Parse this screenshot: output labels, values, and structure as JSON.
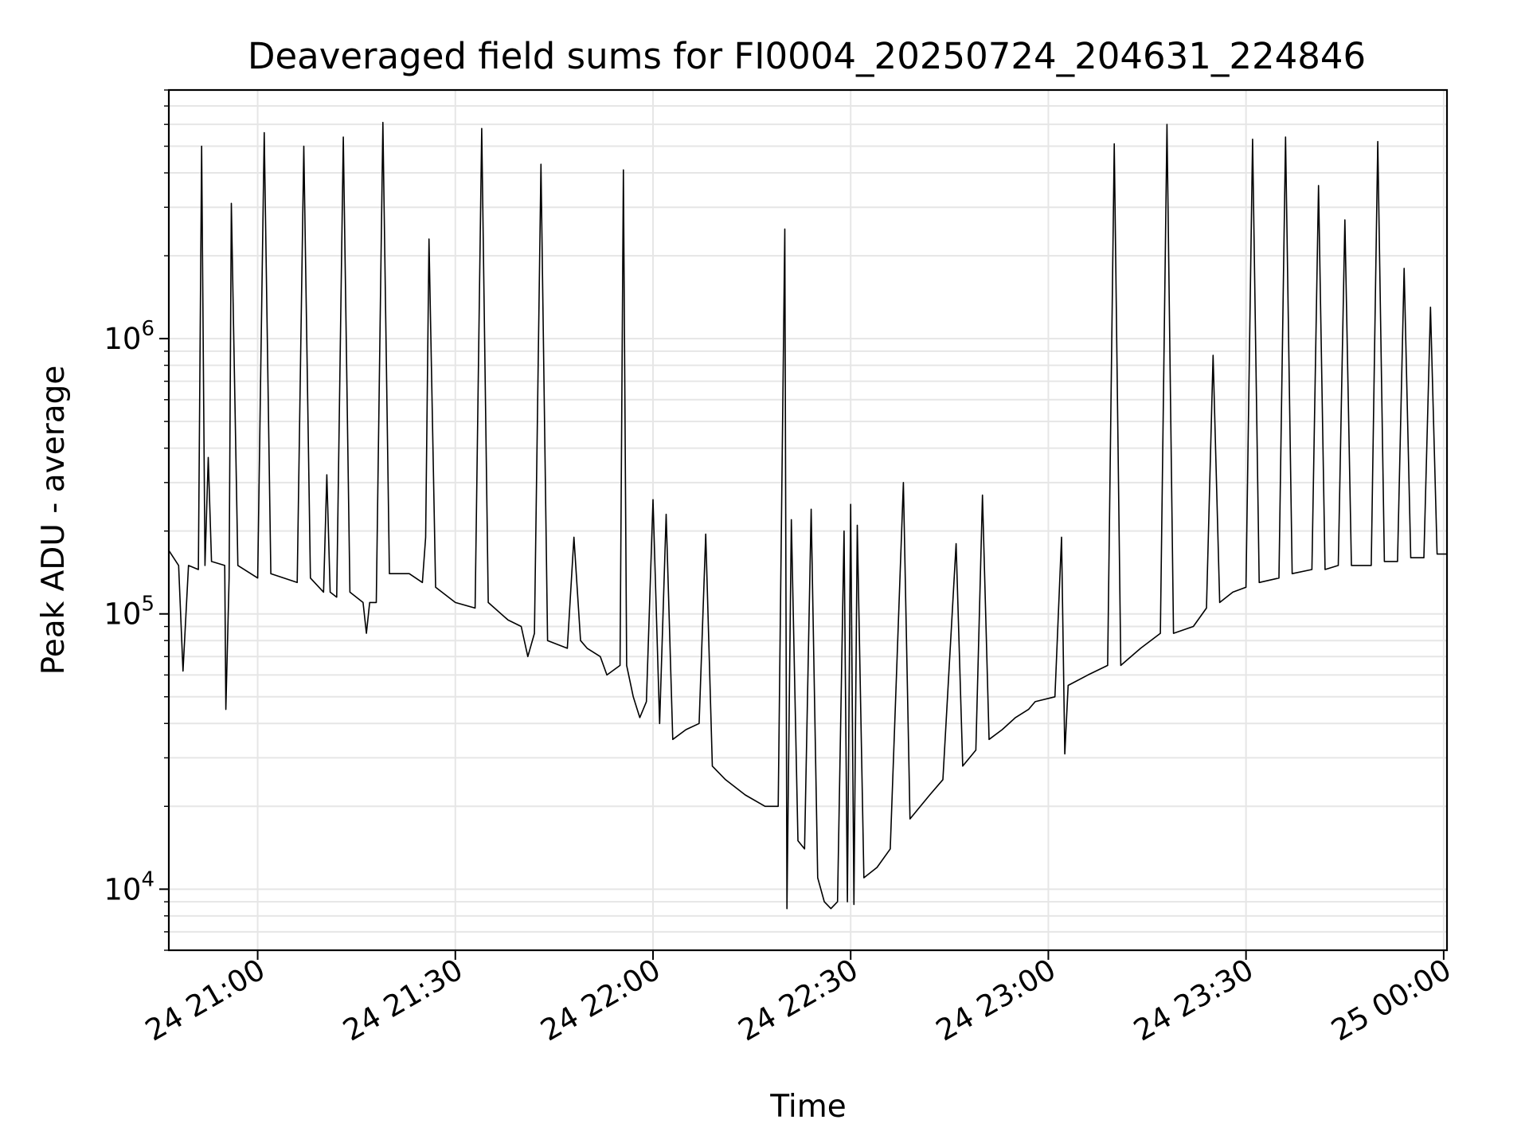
{
  "chart_data": {
    "type": "line",
    "title": "Deaveraged field sums for FI0004_20250724_204631_224846",
    "xlabel": "Time",
    "ylabel": "Peak ADU - average",
    "x_axis": {
      "scale": "time",
      "range": [
        "2025-07-24 20:46:31",
        "2025-07-25 00:00:30"
      ]
    },
    "y_axis": {
      "scale": "log",
      "range": [
        6000,
        8000000
      ]
    },
    "x_ticks": [
      {
        "value": "2025-07-24 21:00",
        "label": "24 21:00"
      },
      {
        "value": "2025-07-24 21:30",
        "label": "24 21:30"
      },
      {
        "value": "2025-07-24 22:00",
        "label": "24 22:00"
      },
      {
        "value": "2025-07-24 22:30",
        "label": "24 22:30"
      },
      {
        "value": "2025-07-24 23:00",
        "label": "24 23:00"
      },
      {
        "value": "2025-07-24 23:30",
        "label": "24 23:30"
      },
      {
        "value": "2025-07-25 00:00",
        "label": "25 00:00"
      }
    ],
    "y_ticks": [
      {
        "value": 10000,
        "base": "10",
        "exponent": "4"
      },
      {
        "value": 100000,
        "base": "10",
        "exponent": "5"
      },
      {
        "value": 1000000,
        "base": "10",
        "exponent": "6"
      }
    ],
    "grid": true,
    "line_color": "#000000",
    "grid_color": "#e6e6e6",
    "series": [
      {
        "points": [
          [
            "2025-07-24 20:46:31",
            170000
          ],
          [
            "2025-07-24 20:48",
            150000
          ],
          [
            "2025-07-24 20:48:40",
            62000
          ],
          [
            "2025-07-24 20:49:30",
            150000
          ],
          [
            "2025-07-24 20:51",
            145000
          ],
          [
            "2025-07-24 20:51:30",
            5000000
          ],
          [
            "2025-07-24 20:52",
            150000
          ],
          [
            "2025-07-24 20:52:30",
            370000
          ],
          [
            "2025-07-24 20:53",
            155000
          ],
          [
            "2025-07-24 20:55",
            150000
          ],
          [
            "2025-07-24 20:55:10",
            45000
          ],
          [
            "2025-07-24 20:55:40",
            135000
          ],
          [
            "2025-07-24 20:56",
            3100000
          ],
          [
            "2025-07-24 20:57",
            150000
          ],
          [
            "2025-07-24 21:00",
            135000
          ],
          [
            "2025-07-24 21:01",
            5600000
          ],
          [
            "2025-07-24 21:02",
            140000
          ],
          [
            "2025-07-24 21:06",
            130000
          ],
          [
            "2025-07-24 21:07",
            5000000
          ],
          [
            "2025-07-24 21:08",
            135000
          ],
          [
            "2025-07-24 21:10",
            120000
          ],
          [
            "2025-07-24 21:10:30",
            320000
          ],
          [
            "2025-07-24 21:11",
            120000
          ],
          [
            "2025-07-24 21:12",
            115000
          ],
          [
            "2025-07-24 21:13",
            5400000
          ],
          [
            "2025-07-24 21:14",
            120000
          ],
          [
            "2025-07-24 21:16",
            110000
          ],
          [
            "2025-07-24 21:16:30",
            85000
          ],
          [
            "2025-07-24 21:17",
            110000
          ],
          [
            "2025-07-24 21:18",
            110000
          ],
          [
            "2025-07-24 21:19",
            6100000
          ],
          [
            "2025-07-24 21:20",
            140000
          ],
          [
            "2025-07-24 21:23",
            140000
          ],
          [
            "2025-07-24 21:25",
            130000
          ],
          [
            "2025-07-24 21:25:30",
            190000
          ],
          [
            "2025-07-24 21:26",
            2300000
          ],
          [
            "2025-07-24 21:27",
            125000
          ],
          [
            "2025-07-24 21:30",
            110000
          ],
          [
            "2025-07-24 21:33",
            105000
          ],
          [
            "2025-07-24 21:34",
            5800000
          ],
          [
            "2025-07-24 21:35",
            110000
          ],
          [
            "2025-07-24 21:38",
            95000
          ],
          [
            "2025-07-24 21:40",
            90000
          ],
          [
            "2025-07-24 21:41",
            70000
          ],
          [
            "2025-07-24 21:42",
            85000
          ],
          [
            "2025-07-24 21:43",
            4300000
          ],
          [
            "2025-07-24 21:44",
            80000
          ],
          [
            "2025-07-24 21:47",
            75000
          ],
          [
            "2025-07-24 21:48",
            190000
          ],
          [
            "2025-07-24 21:49",
            80000
          ],
          [
            "2025-07-24 21:50",
            75000
          ],
          [
            "2025-07-24 21:52",
            70000
          ],
          [
            "2025-07-24 21:53",
            60000
          ],
          [
            "2025-07-24 21:55",
            65000
          ],
          [
            "2025-07-24 21:55:30",
            4100000
          ],
          [
            "2025-07-24 21:56",
            65000
          ],
          [
            "2025-07-24 21:57",
            50000
          ],
          [
            "2025-07-24 21:58",
            42000
          ],
          [
            "2025-07-24 21:59",
            48000
          ],
          [
            "2025-07-24 22:00",
            260000
          ],
          [
            "2025-07-24 22:01",
            40000
          ],
          [
            "2025-07-24 22:02",
            230000
          ],
          [
            "2025-07-24 22:03",
            35000
          ],
          [
            "2025-07-24 22:05",
            38000
          ],
          [
            "2025-07-24 22:07",
            40000
          ],
          [
            "2025-07-24 22:08",
            195000
          ],
          [
            "2025-07-24 22:09",
            28000
          ],
          [
            "2025-07-24 22:11",
            25000
          ],
          [
            "2025-07-24 22:14",
            22000
          ],
          [
            "2025-07-24 22:17",
            20000
          ],
          [
            "2025-07-24 22:19",
            20000
          ],
          [
            "2025-07-24 22:20",
            2500000
          ],
          [
            "2025-07-24 22:20:20",
            8500
          ],
          [
            "2025-07-24 22:21",
            220000
          ],
          [
            "2025-07-24 22:22",
            15000
          ],
          [
            "2025-07-24 22:23",
            14000
          ],
          [
            "2025-07-24 22:24",
            240000
          ],
          [
            "2025-07-24 22:25",
            11000
          ],
          [
            "2025-07-24 22:26",
            9000
          ],
          [
            "2025-07-24 22:27",
            8500
          ],
          [
            "2025-07-24 22:28",
            9000
          ],
          [
            "2025-07-24 22:29",
            200000
          ],
          [
            "2025-07-24 22:29:30",
            9000
          ],
          [
            "2025-07-24 22:30",
            250000
          ],
          [
            "2025-07-24 22:30:30",
            8800
          ],
          [
            "2025-07-24 22:31",
            210000
          ],
          [
            "2025-07-24 22:32",
            11000
          ],
          [
            "2025-07-24 22:34",
            12000
          ],
          [
            "2025-07-24 22:36",
            14000
          ],
          [
            "2025-07-24 22:38",
            300000
          ],
          [
            "2025-07-24 22:39",
            18000
          ],
          [
            "2025-07-24 22:42",
            22000
          ],
          [
            "2025-07-24 22:44",
            25000
          ],
          [
            "2025-07-24 22:46",
            180000
          ],
          [
            "2025-07-24 22:47",
            28000
          ],
          [
            "2025-07-24 22:49",
            32000
          ],
          [
            "2025-07-24 22:50",
            270000
          ],
          [
            "2025-07-24 22:51",
            35000
          ],
          [
            "2025-07-24 22:53",
            38000
          ],
          [
            "2025-07-24 22:55",
            42000
          ],
          [
            "2025-07-24 22:57",
            45000
          ],
          [
            "2025-07-24 22:58",
            48000
          ],
          [
            "2025-07-24 23:01",
            50000
          ],
          [
            "2025-07-24 23:02",
            190000
          ],
          [
            "2025-07-24 23:02:30",
            31000
          ],
          [
            "2025-07-24 23:03",
            55000
          ],
          [
            "2025-07-24 23:06",
            60000
          ],
          [
            "2025-07-24 23:09",
            65000
          ],
          [
            "2025-07-24 23:10",
            5100000
          ],
          [
            "2025-07-24 23:11",
            65000
          ],
          [
            "2025-07-24 23:14",
            75000
          ],
          [
            "2025-07-24 23:17",
            85000
          ],
          [
            "2025-07-24 23:18",
            6000000
          ],
          [
            "2025-07-24 23:19",
            85000
          ],
          [
            "2025-07-24 23:22",
            90000
          ],
          [
            "2025-07-24 23:24",
            105000
          ],
          [
            "2025-07-24 23:25",
            870000
          ],
          [
            "2025-07-24 23:26",
            110000
          ],
          [
            "2025-07-24 23:28",
            120000
          ],
          [
            "2025-07-24 23:30",
            125000
          ],
          [
            "2025-07-24 23:31",
            5300000
          ],
          [
            "2025-07-24 23:32",
            130000
          ],
          [
            "2025-07-24 23:35",
            135000
          ],
          [
            "2025-07-24 23:36",
            5400000
          ],
          [
            "2025-07-24 23:37",
            140000
          ],
          [
            "2025-07-24 23:40",
            145000
          ],
          [
            "2025-07-24 23:41",
            3600000
          ],
          [
            "2025-07-24 23:42",
            145000
          ],
          [
            "2025-07-24 23:44",
            150000
          ],
          [
            "2025-07-24 23:45",
            2700000
          ],
          [
            "2025-07-24 23:46",
            150000
          ],
          [
            "2025-07-24 23:49",
            150000
          ],
          [
            "2025-07-24 23:50",
            5200000
          ],
          [
            "2025-07-24 23:51",
            155000
          ],
          [
            "2025-07-24 23:53",
            155000
          ],
          [
            "2025-07-24 23:54",
            1800000
          ],
          [
            "2025-07-24 23:55",
            160000
          ],
          [
            "2025-07-24 23:57",
            160000
          ],
          [
            "2025-07-24 23:58",
            1300000
          ],
          [
            "2025-07-24 23:59",
            165000
          ],
          [
            "2025-07-25 00:00:30",
            165000
          ]
        ]
      }
    ]
  }
}
